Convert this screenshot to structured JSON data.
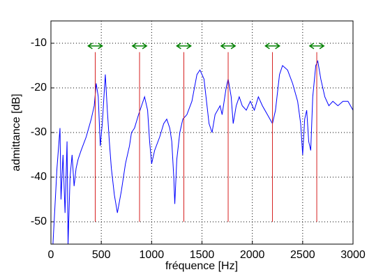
{
  "chart_data": {
    "type": "line",
    "xlabel": "fréquence [Hz]",
    "ylabel": "admittance [dB]",
    "xlim": [
      0,
      3000
    ],
    "ylim": [
      -55,
      -5
    ],
    "xticks": [
      0,
      500,
      1000,
      1500,
      2000,
      2500,
      3000
    ],
    "yticks": [
      -50,
      -40,
      -30,
      -20,
      -10
    ],
    "grid": true,
    "series": [
      {
        "color": "#0000ff",
        "x": [
          20,
          60,
          90,
          100,
          120,
          140,
          160,
          170,
          190,
          210,
          230,
          250,
          270,
          300,
          350,
          400,
          430,
          450,
          470,
          490,
          510,
          540,
          560,
          580,
          600,
          630,
          660,
          700,
          740,
          780,
          800,
          830,
          870,
          900,
          930,
          960,
          980,
          1000,
          1030,
          1080,
          1120,
          1150,
          1180,
          1200,
          1220,
          1230,
          1250,
          1280,
          1310,
          1350,
          1400,
          1450,
          1480,
          1520,
          1550,
          1570,
          1600,
          1630,
          1680,
          1700,
          1740,
          1760,
          1790,
          1810,
          1840,
          1870,
          1900,
          1940,
          1980,
          2020,
          2060,
          2100,
          2150,
          2200,
          2230,
          2270,
          2300,
          2350,
          2400,
          2450,
          2480,
          2500,
          2520,
          2540,
          2560,
          2580,
          2600,
          2630,
          2650,
          2680,
          2720,
          2760,
          2800,
          2850,
          2900,
          2950,
          3000
        ],
        "values": [
          -55,
          -38,
          -29,
          -45,
          -35,
          -48,
          -32,
          -55,
          -40,
          -35,
          -42,
          -38,
          -36,
          -34,
          -31,
          -27,
          -24,
          -19,
          -22,
          -33,
          -28,
          -17,
          -25,
          -32,
          -38,
          -44,
          -48,
          -43,
          -37,
          -33,
          -30,
          -29,
          -26,
          -24,
          -22,
          -25,
          -32,
          -37,
          -34,
          -31,
          -28,
          -27,
          -29,
          -32,
          -40,
          -46,
          -36,
          -30,
          -27,
          -26,
          -23,
          -17,
          -16,
          -18,
          -24,
          -28,
          -30,
          -26,
          -24,
          -26,
          -20,
          -18,
          -22,
          -28,
          -24,
          -22,
          -24,
          -25,
          -23,
          -25,
          -22,
          -24,
          -26,
          -28,
          -25,
          -17,
          -15,
          -16,
          -19,
          -23,
          -28,
          -35,
          -27,
          -25,
          -32,
          -34,
          -22,
          -15,
          -14,
          -18,
          -22,
          -24,
          -23,
          -24,
          -23,
          -23,
          -25
        ]
      }
    ],
    "vlines": {
      "color": "#d62020",
      "x": [
        440,
        880,
        1320,
        1760,
        2200,
        2640
      ],
      "y0": -50,
      "y1": -12
    },
    "arrows": {
      "color": "#008000",
      "y": -10.6,
      "spans": [
        [
          370,
          510
        ],
        [
          810,
          950
        ],
        [
          1250,
          1390
        ],
        [
          1690,
          1830
        ],
        [
          2130,
          2270
        ],
        [
          2570,
          2710
        ]
      ]
    }
  }
}
